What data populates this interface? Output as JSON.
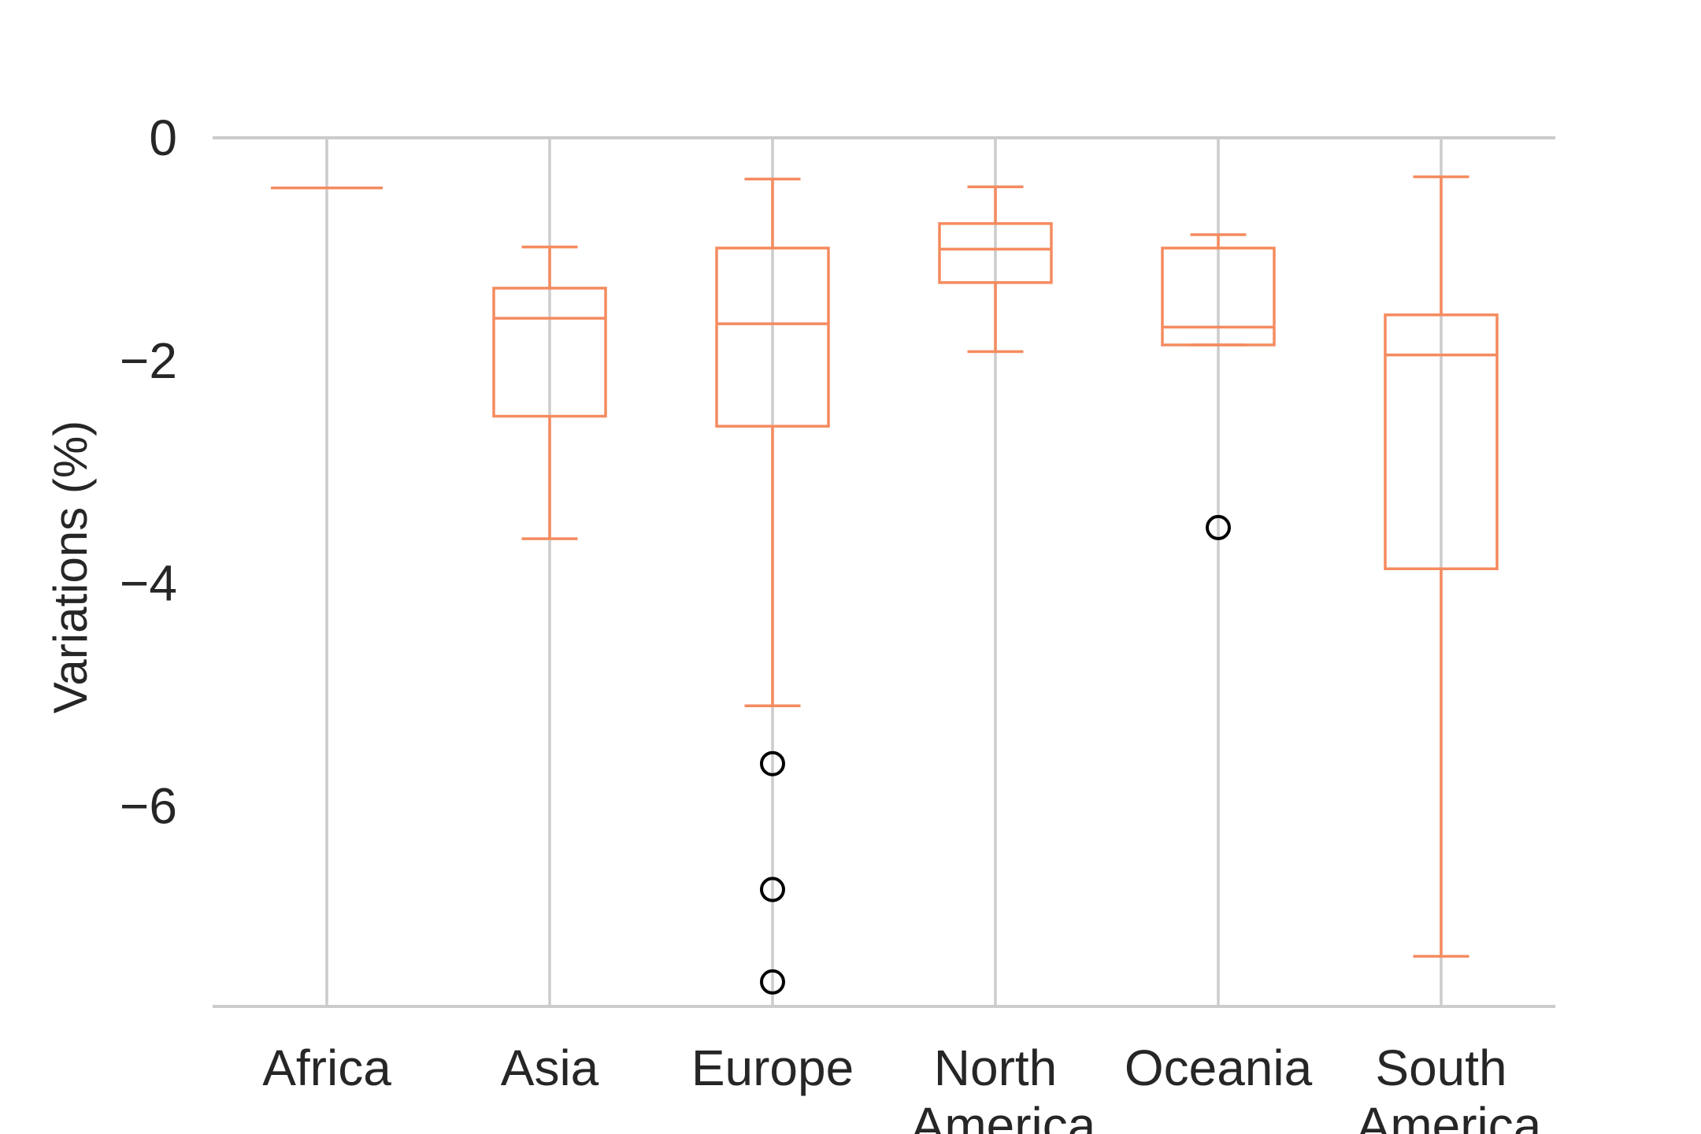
{
  "chart_data": {
    "type": "box",
    "title": "",
    "xlabel": "",
    "ylabel": "Variations (%)",
    "ylim": [
      -7.8,
      0.0
    ],
    "yticks": [
      "0",
      "−2",
      "−4",
      "−6"
    ],
    "yticks_values": [
      0,
      -2,
      -4,
      -6
    ],
    "grid": "vertical lines at categories",
    "colors": {
      "box": "#f58b5f",
      "grid": "#cccccc",
      "outlier": "#000000",
      "text": "#262626"
    },
    "categories": [
      {
        "label": [
          "Africa"
        ],
        "whislo": -0.45,
        "q1": -0.45,
        "med": -0.45,
        "q3": -0.45,
        "whishi": -0.45,
        "fliers": []
      },
      {
        "label": [
          "Asia"
        ],
        "whislo": -3.6,
        "q1": -2.5,
        "med": -1.62,
        "q3": -1.35,
        "whishi": -0.98,
        "fliers": []
      },
      {
        "label": [
          "Europe"
        ],
        "whislo": -5.1,
        "q1": -2.59,
        "med": -1.67,
        "q3": -0.99,
        "whishi": -0.37,
        "fliers": [
          -5.62,
          -6.75,
          -7.58
        ]
      },
      {
        "label": [
          "North",
          "America"
        ],
        "whislo": -1.92,
        "q1": -1.3,
        "med": -1.0,
        "q3": -0.77,
        "whishi": -0.44,
        "fliers": []
      },
      {
        "label": [
          "Oceania"
        ],
        "whislo": -1.86,
        "q1": -1.86,
        "med": -1.7,
        "q3": -0.99,
        "whishi": -0.87,
        "fliers": [
          -3.5
        ]
      },
      {
        "label": [
          "South",
          "America"
        ],
        "whislo": -7.35,
        "q1": -3.87,
        "med": -1.95,
        "q3": -1.59,
        "whishi": -0.35,
        "fliers": []
      }
    ]
  }
}
